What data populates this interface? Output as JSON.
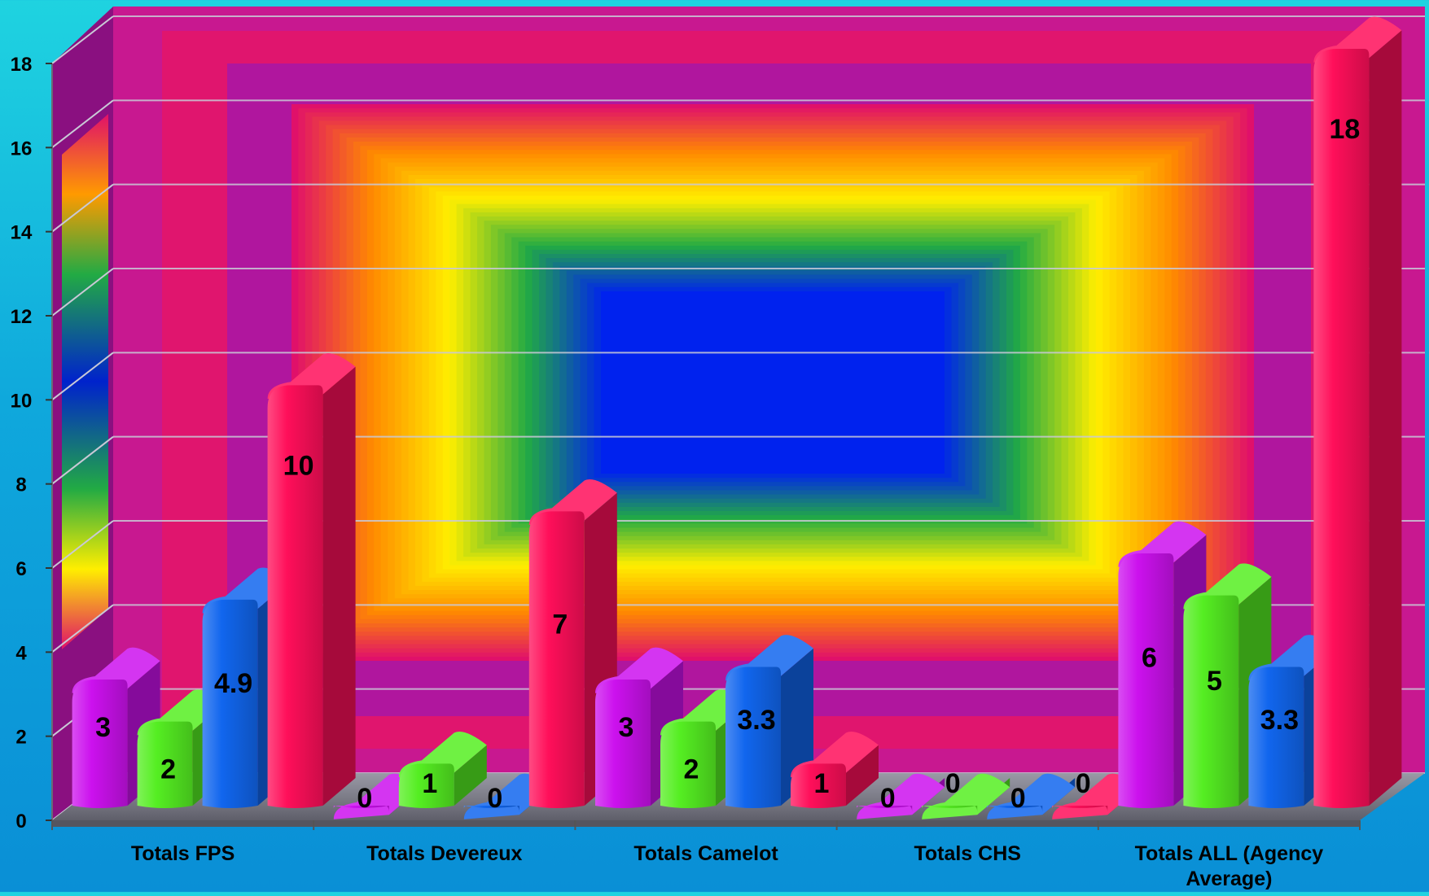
{
  "chart_data": {
    "type": "bar",
    "style": "3d-clustered-column",
    "categories": [
      "Totals FPS",
      "Totals Devereux",
      "Totals Camelot",
      "Totals CHS",
      "Totals ALL (Agency Average)"
    ],
    "series": [
      {
        "values": [
          3,
          0,
          3,
          0,
          6
        ],
        "color": "#cc11ee"
      },
      {
        "values": [
          2,
          1,
          2,
          0,
          5
        ],
        "color": "#55ee22"
      },
      {
        "values": [
          4.9,
          0,
          3.3,
          0,
          3.3
        ],
        "color": "#1166ee"
      },
      {
        "values": [
          10,
          7,
          1,
          0,
          18
        ],
        "color": "#ff0f5a"
      }
    ],
    "y_ticks": [
      "0",
      "2",
      "4",
      "6",
      "8",
      "10",
      "12",
      "14",
      "16",
      "18"
    ],
    "ylim": [
      0,
      18
    ],
    "grid": true,
    "legend": "none",
    "data_labels": [
      [
        "3",
        "2",
        "4.9",
        "10"
      ],
      [
        "0",
        "1",
        "0",
        "7"
      ],
      [
        "3",
        "2",
        "3.3",
        "1"
      ],
      [
        "0",
        "0",
        "0",
        "0"
      ],
      [
        "6",
        "5",
        "3.3",
        "18"
      ]
    ],
    "background": {
      "wall_outer": "#b01aa0",
      "gradient_stops": [
        "#e0106a",
        "#ff8a00",
        "#ffee00",
        "#22aa44",
        "#0022ee"
      ]
    }
  }
}
